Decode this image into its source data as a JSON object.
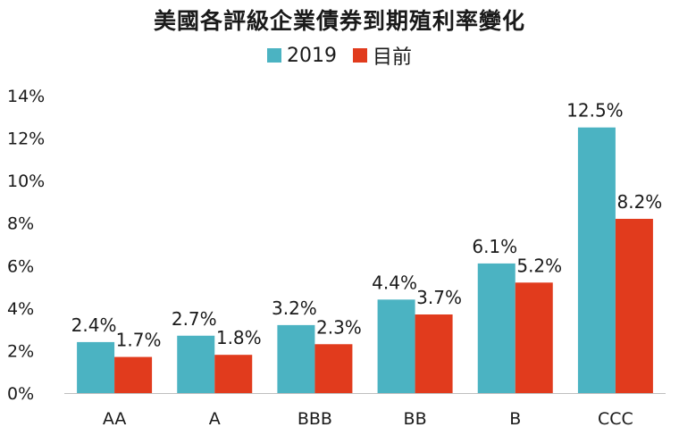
{
  "chart_data": {
    "type": "bar",
    "title": "美國各評級企業債券到期殖利率變化",
    "categories": [
      "AA",
      "A",
      "BBB",
      "BB",
      "B",
      "CCC"
    ],
    "series": [
      {
        "name": "2019",
        "color": "#4bb3c2",
        "values": [
          2.4,
          2.7,
          3.2,
          4.4,
          6.1,
          12.5
        ],
        "labels": [
          "2.4%",
          "2.7%",
          "3.2%",
          "4.4%",
          "6.1%",
          "12.5%"
        ]
      },
      {
        "name": "目前",
        "color": "#e13b1d",
        "values": [
          1.7,
          1.8,
          2.3,
          3.7,
          5.2,
          8.2
        ],
        "labels": [
          "1.7%",
          "1.8%",
          "2.3%",
          "3.7%",
          "5.2%",
          "8.2%"
        ]
      }
    ],
    "yticks": [
      "0%",
      "2%",
      "4%",
      "6%",
      "8%",
      "10%",
      "12%",
      "14%"
    ],
    "ylim": [
      0,
      14
    ],
    "xlabel": "",
    "ylabel": "",
    "grid": false,
    "legend": "top-center"
  }
}
